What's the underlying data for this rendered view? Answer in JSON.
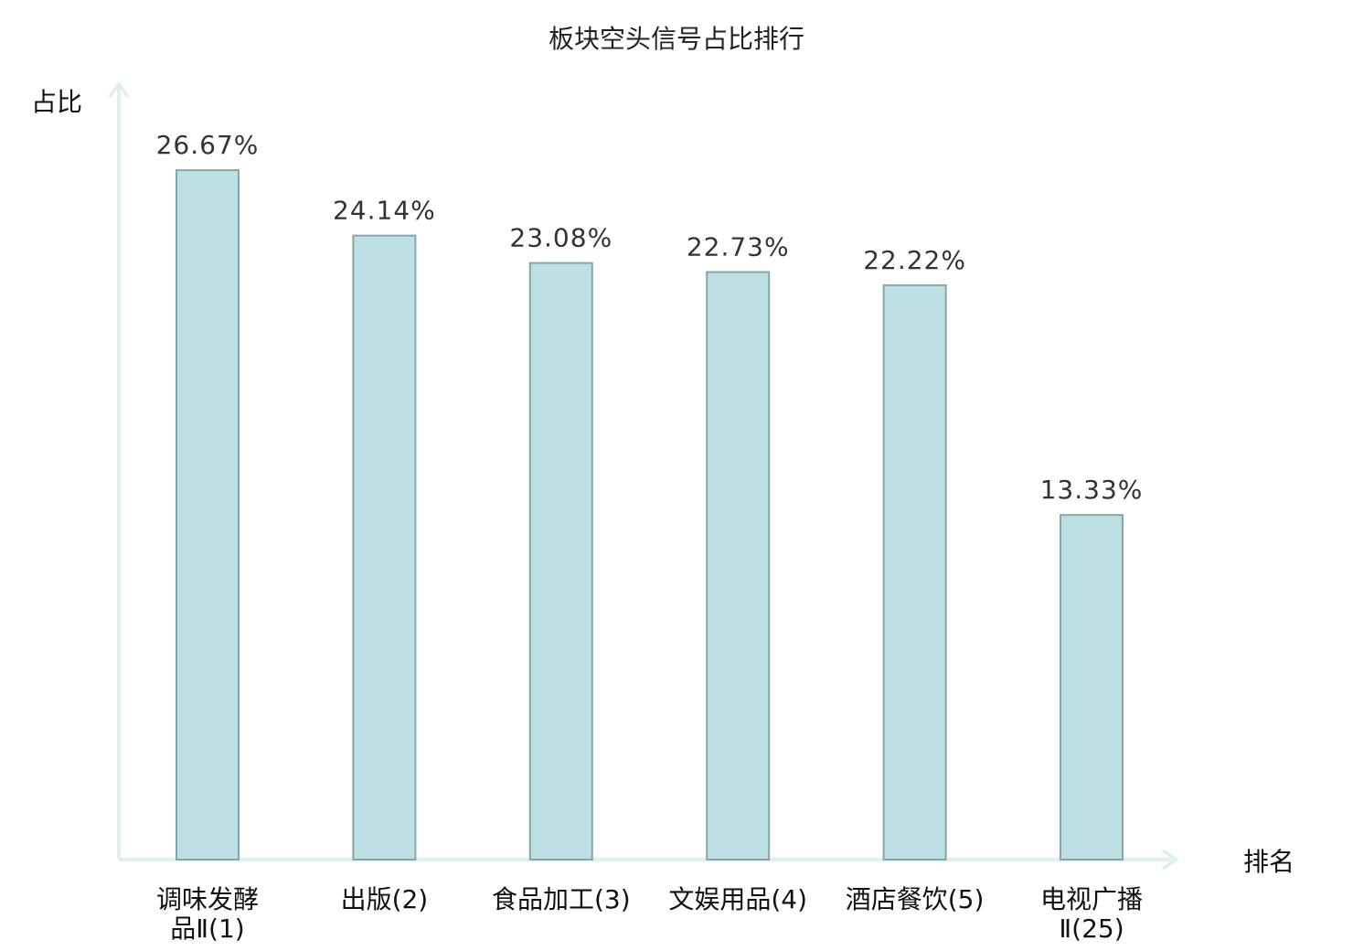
{
  "chart_data": {
    "type": "bar",
    "title": "板块空头信号占比排行",
    "ylabel": "占比",
    "xlabel": "排名",
    "categories": [
      [
        "调味发酵",
        "品Ⅱ(1)"
      ],
      [
        "出版(2)"
      ],
      [
        "食品加工(3)"
      ],
      [
        "文娱用品(4)"
      ],
      [
        "酒店餐饮(5)"
      ],
      [
        "电视广播",
        "Ⅱ(25)"
      ]
    ],
    "highlight_index": 5,
    "values": [
      26.67,
      24.14,
      23.08,
      22.73,
      22.22,
      13.33
    ],
    "value_labels": [
      "26.67%",
      "24.14%",
      "23.08%",
      "22.73%",
      "22.22%",
      "13.33%"
    ],
    "ylim": [
      0,
      30
    ],
    "grid": false,
    "colors": {
      "bar_fill": "#bce0e3",
      "bar_stroke": "#86a7a9",
      "axis": "#dff1ef",
      "highlight_text": "#e60000",
      "text": "#111111"
    }
  }
}
